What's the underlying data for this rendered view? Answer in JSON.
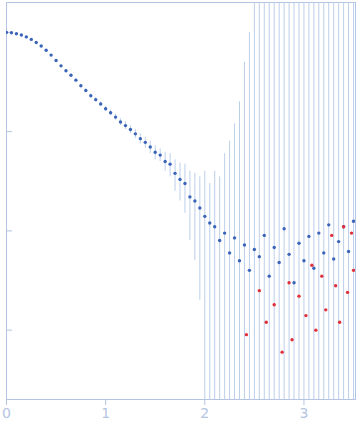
{
  "chart_data": {
    "type": "scatter",
    "log": "y",
    "tick_labels": "x",
    "grid": false,
    "color": "#3a64b8",
    "xlim": [
      0,
      3.52
    ],
    "xticks": [
      0,
      1,
      2,
      3
    ],
    "ylim": [
      0.0002,
      2
    ],
    "yticks": [
      0.001,
      0.01,
      0.1,
      1
    ],
    "x": [
      0.0,
      0.05,
      0.1,
      0.15,
      0.2,
      0.25,
      0.3,
      0.35,
      0.4,
      0.45,
      0.5,
      0.55,
      0.6,
      0.65,
      0.7,
      0.75,
      0.8,
      0.85,
      0.9,
      0.95,
      1.0,
      1.05,
      1.1,
      1.15,
      1.2,
      1.25,
      1.3,
      1.35,
      1.4,
      1.45,
      1.5,
      1.55,
      1.6,
      1.65,
      1.7,
      1.75,
      1.8,
      1.85,
      1.9,
      1.95,
      2.0,
      2.05,
      2.1,
      2.15,
      2.2,
      2.25,
      2.3,
      2.35,
      2.4,
      2.45,
      2.5,
      2.55,
      2.6,
      2.65,
      2.7,
      2.75,
      2.8,
      2.85,
      2.9,
      2.95,
      3.0,
      3.05,
      3.1,
      3.15,
      3.2,
      3.25,
      3.3,
      3.35,
      3.4,
      3.45,
      3.5
    ],
    "values": [
      1.0,
      0.99,
      0.97,
      0.94,
      0.9,
      0.85,
      0.79,
      0.73,
      0.66,
      0.59,
      0.52,
      0.46,
      0.41,
      0.37,
      0.33,
      0.29,
      0.26,
      0.23,
      0.21,
      0.19,
      0.17,
      0.155,
      0.14,
      0.125,
      0.115,
      0.105,
      0.095,
      0.085,
      0.078,
      0.07,
      0.062,
      0.058,
      0.05,
      0.047,
      0.038,
      0.033,
      0.03,
      0.022,
      0.02,
      0.017,
      0.014,
      0.012,
      0.011,
      0.008,
      0.0095,
      0.006,
      0.0085,
      0.005,
      0.0072,
      0.004,
      0.0065,
      0.0055,
      0.009,
      0.0035,
      0.0068,
      0.0048,
      0.0105,
      0.0058,
      0.003,
      0.0075,
      0.005,
      0.0088,
      0.0042,
      0.0095,
      0.006,
      0.0115,
      0.0052,
      0.0078,
      0.011,
      0.0062,
      0.0125
    ],
    "y_low": [
      0.99,
      0.98,
      0.96,
      0.93,
      0.89,
      0.84,
      0.78,
      0.72,
      0.65,
      0.58,
      0.51,
      0.45,
      0.4,
      0.36,
      0.32,
      0.28,
      0.25,
      0.22,
      0.2,
      0.18,
      0.16,
      0.145,
      0.13,
      0.115,
      0.105,
      0.095,
      0.085,
      0.075,
      0.068,
      0.06,
      0.052,
      0.05,
      0.04,
      0.035,
      0.025,
      0.02,
      0.015,
      0.008,
      0.005,
      0.002,
      0.0001,
      0.0001,
      0.0001,
      0.0001,
      0.0001,
      0.0001,
      0.0001,
      0.0001,
      0.0001,
      0.0001,
      0.0001,
      0.0001,
      0.0001,
      0.0001,
      0.0001,
      0.0001,
      0.0001,
      0.0001,
      0.0001,
      0.0001,
      0.0001,
      0.0001,
      0.0001,
      0.0001,
      0.0001,
      0.0001,
      0.0001,
      0.0001,
      0.0001,
      0.0001,
      0.0001
    ],
    "y_high": [
      1.01,
      1.0,
      0.98,
      0.95,
      0.91,
      0.86,
      0.8,
      0.74,
      0.67,
      0.6,
      0.53,
      0.47,
      0.42,
      0.38,
      0.34,
      0.3,
      0.27,
      0.24,
      0.22,
      0.2,
      0.18,
      0.165,
      0.15,
      0.135,
      0.125,
      0.115,
      0.105,
      0.095,
      0.088,
      0.08,
      0.072,
      0.067,
      0.062,
      0.06,
      0.052,
      0.048,
      0.047,
      0.04,
      0.038,
      0.035,
      0.04,
      0.03,
      0.04,
      0.035,
      0.06,
      0.08,
      0.12,
      0.2,
      0.5,
      1,
      2.5,
      3,
      3,
      3,
      3,
      3,
      3,
      3,
      3,
      3,
      3,
      3,
      3,
      3,
      3,
      3,
      3,
      3,
      3,
      3,
      3
    ],
    "outliers": {
      "color": "#e0303a",
      "x": [
        2.42,
        2.55,
        2.62,
        2.7,
        2.78,
        2.85,
        2.88,
        2.95,
        3.02,
        3.08,
        3.12,
        3.18,
        3.22,
        3.28,
        3.32,
        3.36,
        3.4,
        3.44,
        3.48,
        3.5
      ],
      "values": [
        0.0009,
        0.0025,
        0.0012,
        0.0018,
        0.0006,
        0.003,
        0.0008,
        0.0022,
        0.0014,
        0.0045,
        0.001,
        0.0035,
        0.0016,
        0.009,
        0.0028,
        0.0012,
        0.011,
        0.0024,
        0.0095,
        0.004
      ]
    }
  }
}
